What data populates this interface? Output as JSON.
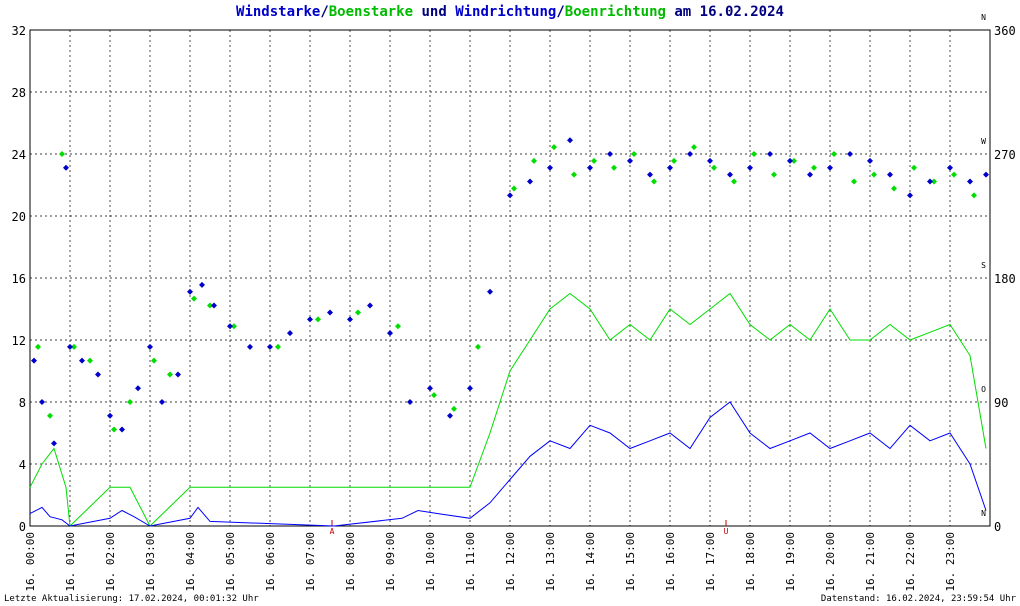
{
  "title": {
    "part1": "Windstarke",
    "sep1": "/",
    "part2": "Boenstarke",
    "part3": " und ",
    "part4": "Windrichtung",
    "sep2": "/",
    "part5": "Boenrichtung",
    "part6": " am 16.02.2024"
  },
  "footer": {
    "left": "Letzte Aktualisierung: 17.02.2024, 00:01:32 Uhr",
    "right": "Datenstand: 16.02.2024, 23:59:54 Uhr"
  },
  "colors": {
    "speed": "#0000ff",
    "gust": "#00dd00",
    "direction": "#0000cc",
    "gust_direction": "#00dd00",
    "marker": "#cc0000",
    "grid": "#000000"
  },
  "chart_data": {
    "type": "scatter",
    "x_unit": "hour of day",
    "xlim": [
      0,
      24
    ],
    "ylim_left": [
      0,
      32
    ],
    "ylim_right": [
      0,
      360
    ],
    "y_left_ticks": [
      "0",
      "4",
      "8",
      "12",
      "16",
      "20",
      "24",
      "28",
      "32"
    ],
    "y_right_ticks": [
      "0",
      "90",
      "180",
      "270",
      "360"
    ],
    "compass_labels": [
      "N",
      "O",
      "S",
      "W",
      "N"
    ],
    "x_ticks": [
      "16. 00:00",
      "16. 01:00",
      "16. 02:00",
      "16. 03:00",
      "16. 04:00",
      "16. 05:00",
      "16. 06:00",
      "16. 07:00",
      "16. 08:00",
      "16. 09:00",
      "16. 10:00",
      "16. 11:00",
      "16. 12:00",
      "16. 13:00",
      "16. 14:00",
      "16. 15:00",
      "16. 16:00",
      "16. 17:00",
      "16. 18:00",
      "16. 19:00",
      "16. 20:00",
      "16. 21:00",
      "16. 22:00",
      "16. 23:00"
    ],
    "markers": [
      {
        "label": "A",
        "x": 7.55
      },
      {
        "label": "U",
        "x": 17.4
      }
    ],
    "grid": true,
    "series": [
      {
        "name": "Windstarke",
        "kind": "line-left",
        "x": [
          0,
          0.3,
          0.5,
          0.8,
          1.0,
          2.0,
          2.3,
          2.6,
          3.0,
          4.0,
          4.2,
          4.5,
          7.6,
          9.3,
          9.7,
          10.2,
          11.0,
          11.5,
          12.0,
          12.5,
          13.0,
          13.5,
          14.0,
          14.5,
          15.0,
          15.5,
          16.0,
          16.5,
          17.0,
          17.5,
          18.0,
          18.5,
          19.0,
          19.5,
          20.0,
          20.5,
          21.0,
          21.5,
          22.0,
          22.5,
          23.0,
          23.5,
          23.9
        ],
        "y": [
          0.8,
          1.2,
          0.6,
          0.4,
          0,
          0.5,
          1.0,
          0.6,
          0,
          0.5,
          1.2,
          0.3,
          0,
          0.5,
          1.0,
          0.8,
          0.5,
          1.5,
          3.0,
          4.5,
          5.5,
          5.0,
          6.5,
          6.0,
          5.0,
          5.5,
          6.0,
          5.0,
          7.0,
          8.0,
          6.0,
          5.0,
          5.5,
          6.0,
          5.0,
          5.5,
          6.0,
          5.0,
          6.5,
          5.5,
          6.0,
          4.0,
          1.0
        ]
      },
      {
        "name": "Boenstarke",
        "kind": "line-left",
        "x": [
          0,
          0.3,
          0.6,
          0.9,
          1.0,
          2.0,
          2.5,
          3.0,
          4.0,
          4.5,
          7.5,
          9.4,
          10.0,
          11.0,
          11.5,
          12.0,
          12.5,
          13.0,
          13.5,
          14.0,
          14.5,
          15.0,
          15.5,
          16.0,
          16.5,
          17.0,
          17.5,
          18.0,
          18.5,
          19.0,
          19.5,
          20.0,
          20.5,
          21.0,
          21.5,
          22.0,
          22.5,
          23.0,
          23.5,
          23.9
        ],
        "y": [
          2.5,
          4.0,
          5.0,
          2.5,
          0,
          2.5,
          2.5,
          0,
          2.5,
          2.5,
          2.5,
          2.5,
          2.5,
          2.5,
          6.0,
          10.0,
          12.0,
          14.0,
          15.0,
          14.0,
          12.0,
          13.0,
          12.0,
          14.0,
          13.0,
          14.0,
          15.0,
          13.0,
          12.0,
          13.0,
          12.0,
          14.0,
          12.0,
          12.0,
          13.0,
          12.0,
          12.5,
          13.0,
          11.0,
          5.0
        ]
      },
      {
        "name": "Windrichtung",
        "kind": "scatter-right",
        "x": [
          0.1,
          0.3,
          0.6,
          0.9,
          1.0,
          1.3,
          1.7,
          2.0,
          2.3,
          2.7,
          3.0,
          3.3,
          3.7,
          4.0,
          4.3,
          4.6,
          5.0,
          5.5,
          6.0,
          6.5,
          7.0,
          7.5,
          8.0,
          8.5,
          9.0,
          9.5,
          10.0,
          10.5,
          11.0,
          11.5,
          12.0,
          12.5,
          13.0,
          13.5,
          14.0,
          14.5,
          15.0,
          15.5,
          16.0,
          16.5,
          17.0,
          17.5,
          18.0,
          18.5,
          19.0,
          19.5,
          20.0,
          20.5,
          21.0,
          21.5,
          22.0,
          22.5,
          23.0,
          23.5,
          23.9
        ],
        "y": [
          120,
          90,
          60,
          260,
          130,
          120,
          110,
          80,
          70,
          100,
          130,
          90,
          110,
          170,
          175,
          160,
          145,
          130,
          130,
          140,
          150,
          155,
          150,
          160,
          140,
          90,
          100,
          80,
          100,
          170,
          240,
          250,
          260,
          280,
          260,
          270,
          265,
          255,
          260,
          270,
          265,
          255,
          260,
          270,
          265,
          255,
          260,
          270,
          265,
          255,
          240,
          250,
          260,
          250,
          255
        ]
      },
      {
        "name": "Boenrichtung",
        "kind": "scatter-right",
        "x": [
          0.2,
          0.5,
          0.8,
          1.1,
          1.5,
          2.1,
          2.5,
          3.1,
          3.5,
          4.1,
          4.5,
          5.1,
          6.2,
          7.2,
          8.2,
          9.2,
          10.1,
          10.6,
          11.2,
          12.1,
          12.6,
          13.1,
          13.6,
          14.1,
          14.6,
          15.1,
          15.6,
          16.1,
          16.6,
          17.1,
          17.6,
          18.1,
          18.6,
          19.1,
          19.6,
          20.1,
          20.6,
          21.1,
          21.6,
          22.1,
          22.6,
          23.1,
          23.6
        ],
        "y": [
          130,
          80,
          270,
          130,
          120,
          70,
          90,
          120,
          110,
          165,
          160,
          145,
          130,
          150,
          155,
          145,
          95,
          85,
          130,
          245,
          265,
          275,
          255,
          265,
          260,
          270,
          250,
          265,
          275,
          260,
          250,
          270,
          255,
          265,
          260,
          270,
          250,
          255,
          245,
          260,
          250,
          255,
          240
        ]
      }
    ]
  }
}
